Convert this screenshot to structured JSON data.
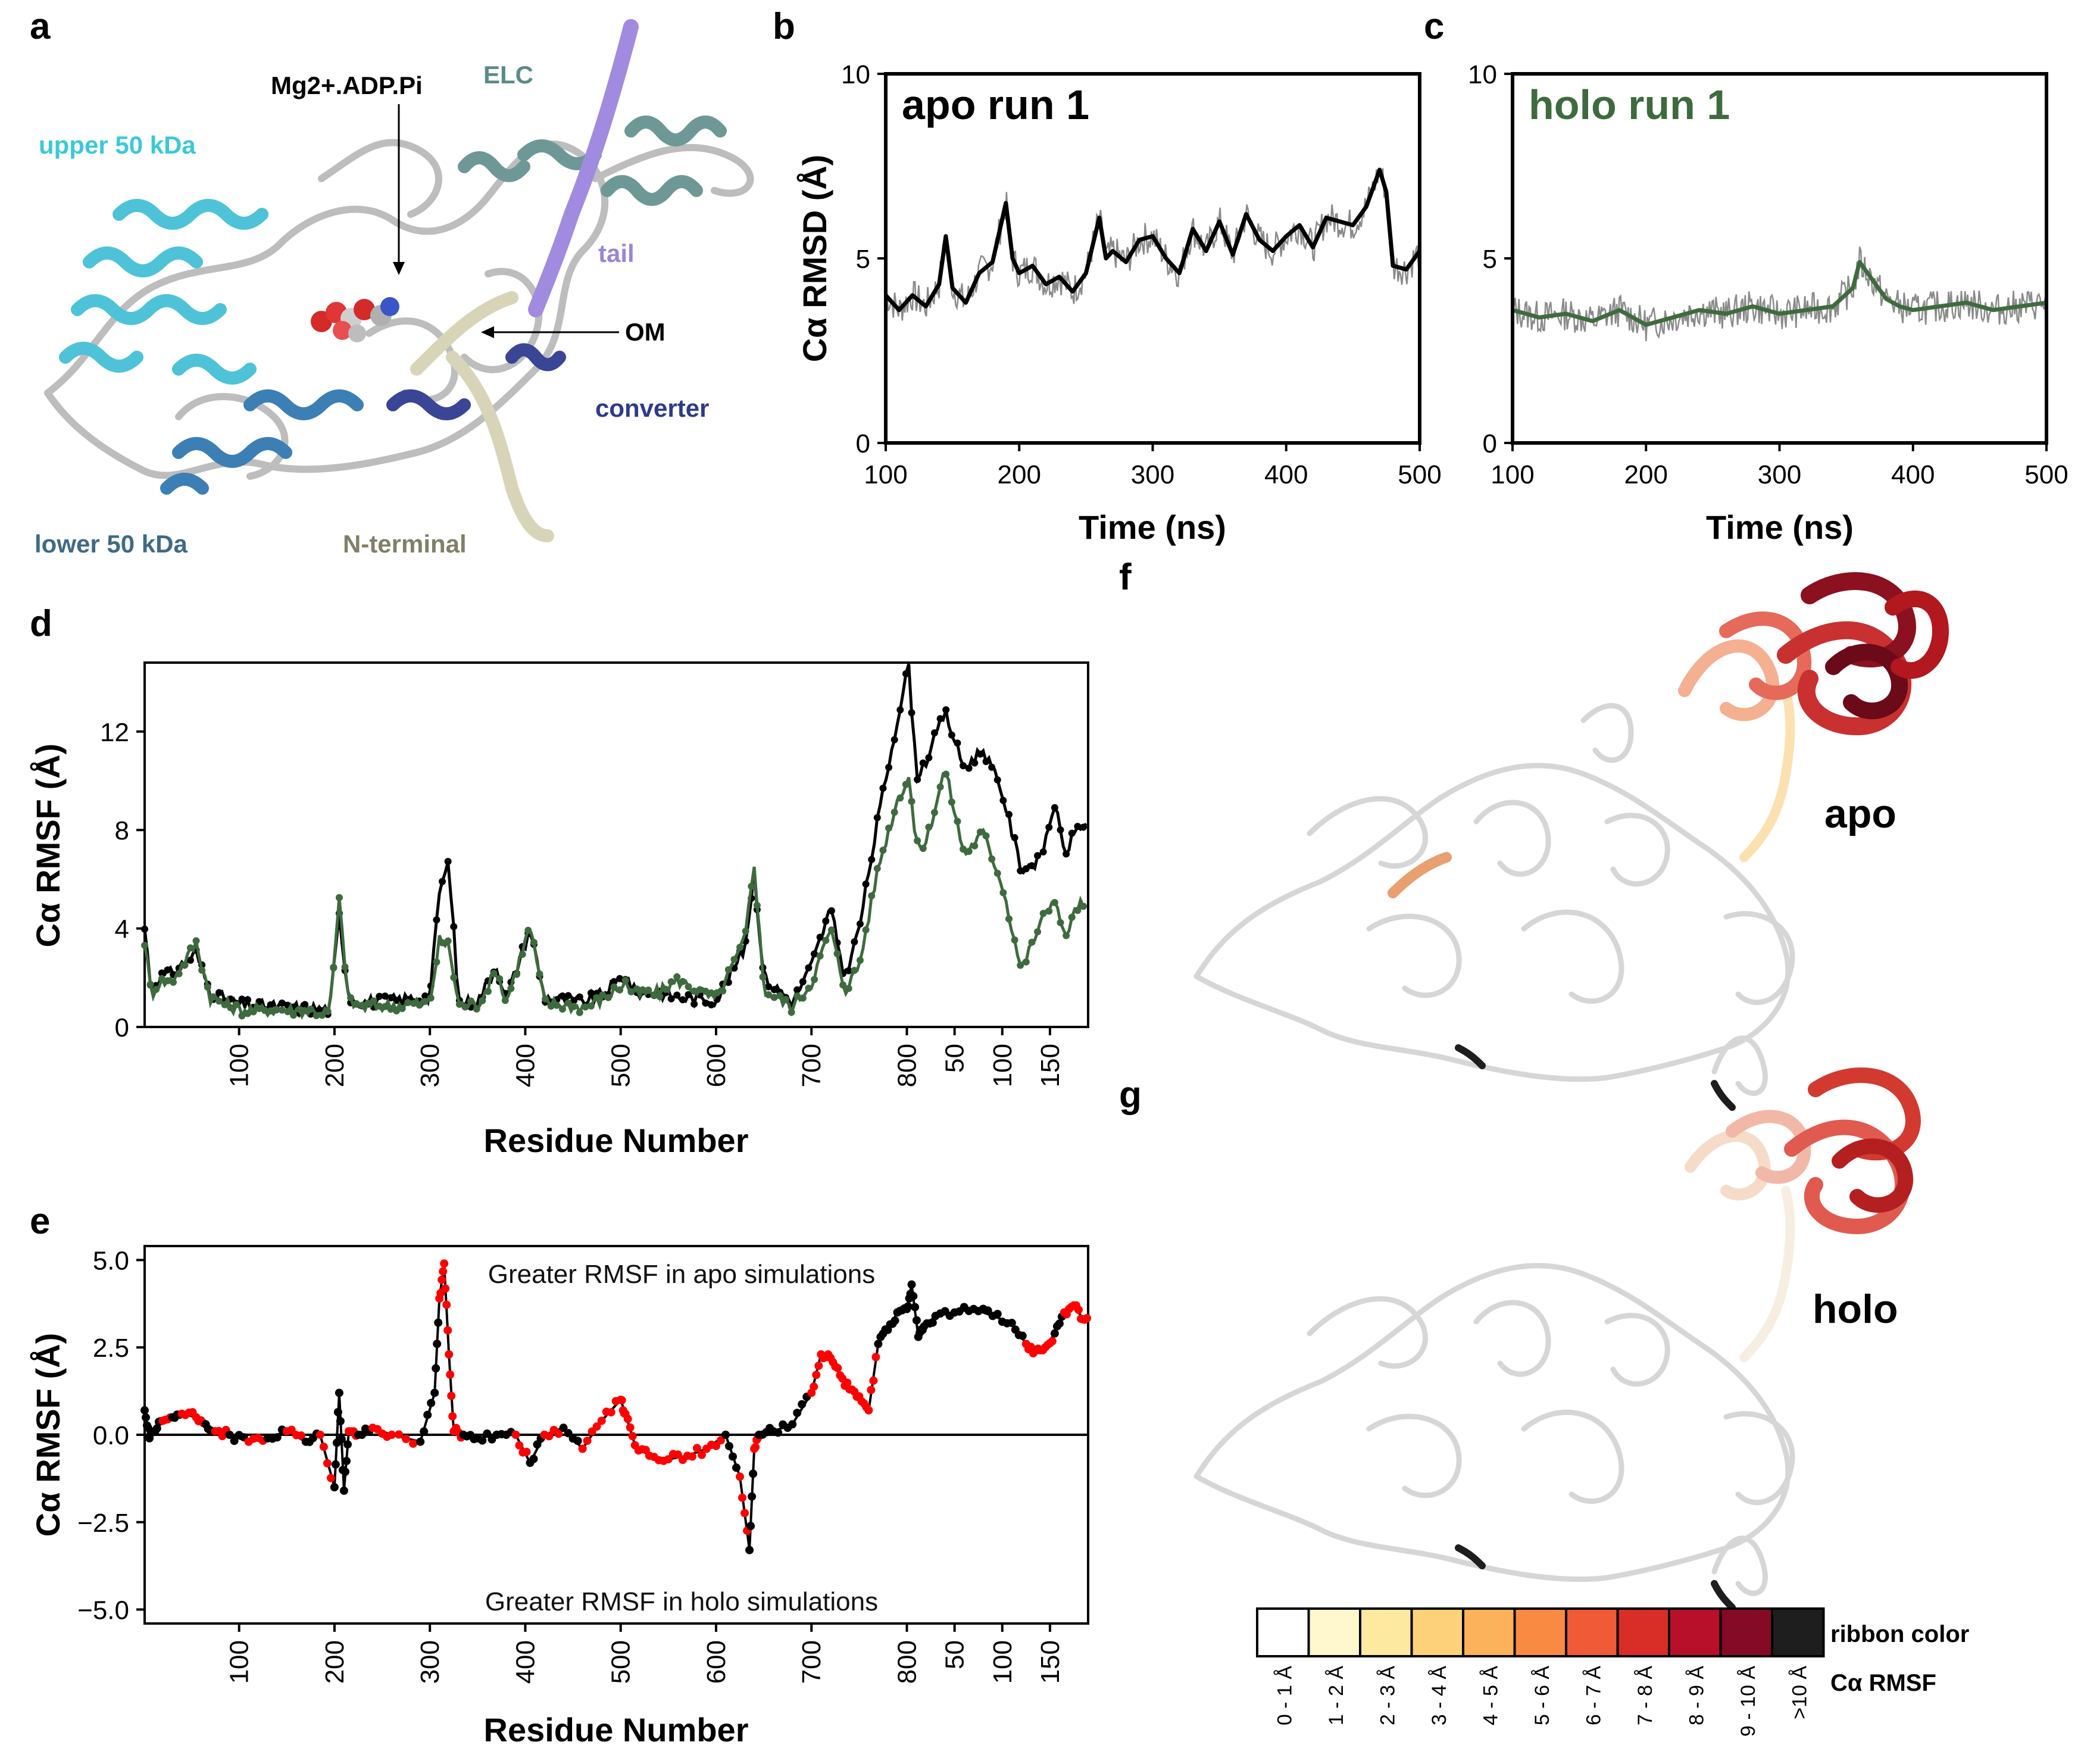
{
  "panel_labels": {
    "a": "a",
    "b": "b",
    "c": "c",
    "d": "d",
    "e": "e",
    "f": "f",
    "g": "g"
  },
  "structure_a": {
    "labels": {
      "ligand": "Mg2+.ADP.Pi",
      "elc": "ELC",
      "upper50": "upper 50 kDa",
      "tail": "tail",
      "om": "OM",
      "converter": "converter",
      "lower50": "lower 50 kDa",
      "nterm": "N-terminal"
    },
    "label_colors": {
      "upper50": "#3cc8d8",
      "elc": "#5c8a88",
      "tail": "#9b85d6",
      "converter": "#2e3a8c",
      "lower50": "#3f6a86",
      "nterm": "#808068"
    }
  },
  "chart_data": [
    {
      "id": "b",
      "type": "line",
      "panel_title": "apo run 1",
      "title_color": "#000000",
      "series_color": "#000000",
      "noise_color": "#8a8a8a",
      "xlabel": "Time (ns)",
      "ylabel": "Cα RMSD (Å)",
      "xlim": [
        100,
        500
      ],
      "ylim": [
        0,
        10
      ],
      "xticks": [
        100,
        200,
        300,
        400,
        500
      ],
      "yticks": [
        0,
        5,
        10
      ],
      "x": [
        100,
        110,
        120,
        130,
        140,
        145,
        150,
        160,
        170,
        180,
        190,
        195,
        200,
        210,
        220,
        230,
        240,
        250,
        260,
        265,
        270,
        280,
        290,
        300,
        310,
        320,
        330,
        340,
        350,
        360,
        370,
        380,
        390,
        400,
        410,
        420,
        430,
        440,
        450,
        460,
        470,
        475,
        480,
        490,
        500
      ],
      "y": [
        4.0,
        3.6,
        4.0,
        3.7,
        4.3,
        5.6,
        4.2,
        3.8,
        4.6,
        4.9,
        6.5,
        5.0,
        4.6,
        4.8,
        4.3,
        4.5,
        4.1,
        4.6,
        6.1,
        5.0,
        5.2,
        4.9,
        5.5,
        5.6,
        5.0,
        4.6,
        5.8,
        5.2,
        6.0,
        5.1,
        6.2,
        5.5,
        5.2,
        5.6,
        5.9,
        5.3,
        6.1,
        6.0,
        5.9,
        6.4,
        7.4,
        6.8,
        4.8,
        4.7,
        5.2
      ]
    },
    {
      "id": "c",
      "type": "line",
      "panel_title": "holo run 1",
      "title_color": "#3e6b3e",
      "series_color": "#3e6b3e",
      "noise_color": "#8a8a8a",
      "xlabel": "Time (ns)",
      "ylabel": "",
      "xlim": [
        100,
        500
      ],
      "ylim": [
        0,
        10
      ],
      "xticks": [
        100,
        200,
        300,
        400,
        500
      ],
      "yticks": [
        0,
        5,
        10
      ],
      "x": [
        100,
        120,
        140,
        160,
        180,
        200,
        220,
        240,
        260,
        280,
        300,
        320,
        340,
        355,
        360,
        370,
        380,
        390,
        400,
        420,
        440,
        460,
        480,
        500
      ],
      "y": [
        3.6,
        3.4,
        3.5,
        3.3,
        3.6,
        3.2,
        3.4,
        3.6,
        3.5,
        3.7,
        3.5,
        3.6,
        3.7,
        4.2,
        4.9,
        4.4,
        3.9,
        3.7,
        3.6,
        3.7,
        3.8,
        3.6,
        3.7,
        3.8
      ]
    },
    {
      "id": "d",
      "type": "line",
      "xlabel": "Residue Number",
      "ylabel": "Cα RMSF (Å)",
      "ylim": [
        0,
        14.8
      ],
      "yticks": [
        0,
        4,
        8,
        12
      ],
      "xticks_label": [
        "100",
        "200",
        "300",
        "400",
        "500",
        "600",
        "700",
        "800",
        "50",
        "100",
        "150"
      ],
      "xticks_index": [
        100,
        200,
        300,
        400,
        500,
        600,
        700,
        800,
        850,
        900,
        950
      ],
      "index_range": [
        1,
        990
      ],
      "series": [
        {
          "name": "apo",
          "color": "#000000",
          "x": [
            1,
            8,
            15,
            30,
            55,
            70,
            100,
            150,
            195,
            205,
            215,
            230,
            300,
            310,
            320,
            330,
            350,
            370,
            380,
            405,
            420,
            460,
            480,
            505,
            515,
            540,
            560,
            600,
            630,
            640,
            650,
            680,
            700,
            720,
            735,
            750,
            770,
            790,
            802,
            810,
            820,
            840,
            860,
            880,
            900,
            920,
            940,
            955,
            965,
            980,
            990
          ],
          "y": [
            4.0,
            1.5,
            2.0,
            2.2,
            3.0,
            1.4,
            0.9,
            0.8,
            0.7,
            4.5,
            1.2,
            1.0,
            1.2,
            5.5,
            6.7,
            1.0,
            1.0,
            2.5,
            1.1,
            4.0,
            1.2,
            1.0,
            1.3,
            2.1,
            1.4,
            1.4,
            1.2,
            1.1,
            3.2,
            6.3,
            2.0,
            1.0,
            2.5,
            4.8,
            2.0,
            4.0,
            8.5,
            12.5,
            14.7,
            10.2,
            10.8,
            12.8,
            10.5,
            11.3,
            9.5,
            6.4,
            6.8,
            9.1,
            7.0,
            8.2,
            8.2
          ]
        },
        {
          "name": "holo",
          "color": "#3e6b3e",
          "x": [
            1,
            8,
            15,
            30,
            55,
            70,
            100,
            150,
            195,
            205,
            215,
            230,
            300,
            310,
            320,
            330,
            350,
            370,
            380,
            405,
            420,
            460,
            480,
            505,
            515,
            540,
            560,
            600,
            630,
            640,
            650,
            680,
            700,
            720,
            735,
            750,
            770,
            790,
            802,
            810,
            820,
            840,
            860,
            880,
            900,
            920,
            940,
            955,
            965,
            980,
            990
          ],
          "y": [
            3.5,
            1.3,
            1.8,
            1.9,
            3.4,
            1.2,
            0.7,
            0.7,
            0.6,
            5.1,
            1.0,
            0.8,
            1.0,
            3.5,
            3.3,
            0.9,
            0.9,
            2.3,
            1.0,
            4.1,
            1.0,
            0.8,
            1.1,
            1.8,
            1.3,
            1.4,
            1.9,
            1.1,
            3.5,
            6.7,
            1.5,
            0.8,
            1.8,
            4.0,
            1.5,
            2.5,
            6.5,
            9.2,
            10.2,
            7.3,
            7.5,
            10.5,
            7.0,
            7.9,
            5.8,
            2.3,
            4.2,
            5.3,
            3.6,
            5.0,
            4.8
          ]
        }
      ]
    },
    {
      "id": "e",
      "type": "scatter",
      "xlabel": "Residue Number",
      "ylabel": "Cα RMSF (Å)",
      "ylim": [
        -5.4,
        5.4
      ],
      "yticks": [
        -5.0,
        -2.5,
        0.0,
        2.5,
        5.0
      ],
      "ytick_labels": [
        "−5.0",
        "−2.5",
        "0.0",
        "2.5",
        "5.0"
      ],
      "xticks_label": [
        "100",
        "200",
        "300",
        "400",
        "500",
        "600",
        "700",
        "800",
        "50",
        "100",
        "150"
      ],
      "xticks_index": [
        100,
        200,
        300,
        400,
        500,
        600,
        700,
        800,
        850,
        900,
        950
      ],
      "index_range": [
        1,
        990
      ],
      "annotation_top": "Greater RMSF in apo simulations",
      "annotation_bottom": "Greater RMSF in holo simulations",
      "point_colors": {
        "significant": "#ff0000",
        "not_significant": "#000000"
      },
      "x": [
        1,
        6,
        12,
        20,
        30,
        40,
        55,
        65,
        75,
        90,
        110,
        130,
        150,
        170,
        185,
        200,
        205,
        210,
        215,
        225,
        240,
        260,
        290,
        305,
        310,
        315,
        320,
        325,
        335,
        350,
        370,
        390,
        405,
        420,
        440,
        460,
        480,
        500,
        505,
        515,
        530,
        550,
        570,
        590,
        610,
        625,
        635,
        640,
        645,
        660,
        680,
        700,
        710,
        720,
        730,
        740,
        750,
        760,
        770,
        780,
        790,
        800,
        805,
        812,
        818,
        830,
        850,
        870,
        890,
        910,
        925,
        935,
        945,
        955,
        965,
        975,
        985,
        990
      ],
      "y": [
        0.7,
        -0.1,
        0.1,
        0.4,
        0.5,
        0.6,
        0.5,
        0.3,
        0.1,
        0.0,
        -0.2,
        -0.1,
        0.1,
        -0.2,
        0.0,
        -1.5,
        1.2,
        -1.6,
        0.1,
        0.0,
        0.2,
        0.0,
        -0.2,
        1.2,
        3.9,
        4.9,
        2.3,
        0.1,
        0.0,
        -0.1,
        0.0,
        0.0,
        -0.8,
        0.0,
        0.2,
        -0.4,
        0.4,
        1.0,
        0.6,
        -0.3,
        -0.6,
        -0.7,
        -0.6,
        -0.4,
        0.0,
        -1.2,
        -3.3,
        -0.4,
        0.0,
        0.1,
        0.3,
        1.2,
        2.3,
        2.2,
        1.7,
        1.3,
        1.1,
        0.7,
        2.6,
        3.0,
        3.5,
        3.6,
        4.3,
        2.8,
        3.1,
        3.4,
        3.5,
        3.6,
        3.4,
        3.2,
        2.6,
        2.4,
        2.5,
        2.9,
        3.5,
        3.7,
        3.3,
        3.2
      ],
      "sig": [
        0,
        0,
        0,
        1,
        0,
        1,
        1,
        0,
        1,
        0,
        1,
        0,
        1,
        0,
        1,
        0,
        0,
        0,
        1,
        0,
        1,
        1,
        0,
        0,
        1,
        1,
        1,
        1,
        0,
        0,
        0,
        1,
        0,
        1,
        0,
        1,
        1,
        1,
        1,
        1,
        1,
        1,
        1,
        1,
        0,
        1,
        0,
        1,
        0,
        0,
        0,
        1,
        1,
        1,
        1,
        1,
        1,
        1,
        0,
        0,
        0,
        0,
        0,
        0,
        0,
        0,
        0,
        0,
        0,
        0,
        1,
        1,
        1,
        0,
        1,
        1,
        1,
        0
      ]
    }
  ],
  "ribbon_f": {
    "label": "apo",
    "label_color": "#000000"
  },
  "ribbon_g": {
    "label": "holo",
    "label_color": "#3e6b3e"
  },
  "colorbar": {
    "title": "ribbon color",
    "subtitle": "Cα RMSF",
    "bins": [
      "0 - 1 Å",
      "1 - 2 Å",
      "2 - 3 Å",
      "3 - 4 Å",
      "4 - 5 Å",
      "5 - 6 Å",
      "6 - 7 Å",
      "7 - 8 Å",
      "8 - 9 Å",
      "9 - 10 Å",
      ">10 Å"
    ],
    "colors": [
      "#ffffff",
      "#fff8cf",
      "#fde9a0",
      "#fdd17a",
      "#fcb25a",
      "#f88a42",
      "#f05a36",
      "#d92e27",
      "#b80f2b",
      "#850a26",
      "#1e1e1e"
    ]
  }
}
